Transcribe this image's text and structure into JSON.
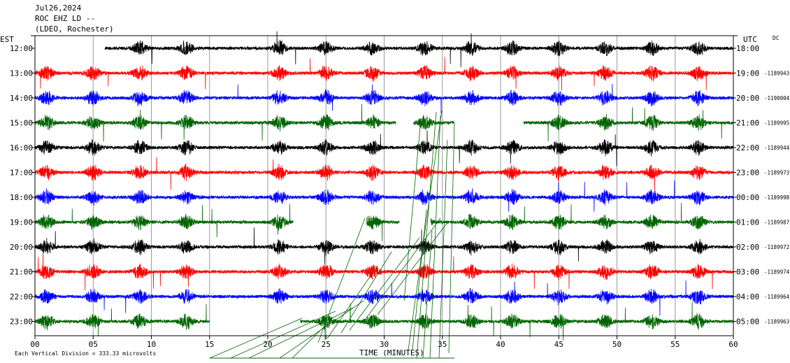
{
  "header": {
    "date": "Jul26,2024",
    "station": "ROC EHZ LD --",
    "network": "(LDEO, Rochester)"
  },
  "left_zone_label": "EST",
  "right_zone_label": "UTC",
  "dc_label": "DC",
  "footer_note": "Each Vertical Division = 333.33 microvolts",
  "chart_data": {
    "type": "line",
    "title": "",
    "xlabel": "TIME (MINUTES)",
    "ylabel": "",
    "xlim": [
      0,
      60
    ],
    "x_ticks": [
      "00",
      "05",
      "10",
      "15",
      "20",
      "25",
      "30",
      "35",
      "40",
      "45",
      "50",
      "55",
      "60"
    ],
    "grid": true,
    "rows": [
      {
        "est": "12:00",
        "utc": "18:00",
        "dc": "",
        "color": "#000000",
        "start_min": 6,
        "end_min": 60
      },
      {
        "est": "13:00",
        "utc": "19:00",
        "dc": "-1189943",
        "color": "#ff0000",
        "start_min": 0,
        "end_min": 60
      },
      {
        "est": "14:00",
        "utc": "20:00",
        "dc": "-1190004",
        "color": "#0000ff",
        "start_min": 0,
        "end_min": 60
      },
      {
        "est": "15:00",
        "utc": "21:00",
        "dc": "-1189995",
        "color": "#006400",
        "start_min": 0,
        "end_min": 60,
        "gaps": [
          [
            31,
            32.5
          ],
          [
            36,
            42
          ]
        ]
      },
      {
        "est": "16:00",
        "utc": "22:00",
        "dc": "-1189944",
        "color": "#000000",
        "start_min": 0,
        "end_min": 60
      },
      {
        "est": "17:00",
        "utc": "23:00",
        "dc": "-1189973",
        "color": "#ff0000",
        "start_min": 0,
        "end_min": 60
      },
      {
        "est": "18:00",
        "utc": "00:00",
        "dc": "-1189998",
        "color": "#0000ff",
        "start_min": 0,
        "end_min": 60
      },
      {
        "est": "19:00",
        "utc": "01:00",
        "dc": "-1189987",
        "color": "#006400",
        "start_min": 0,
        "end_min": 60,
        "gaps": [
          [
            22.2,
            28.5
          ],
          [
            31.3,
            34
          ]
        ]
      },
      {
        "est": "20:00",
        "utc": "02:00",
        "dc": "-1189972",
        "color": "#000000",
        "start_min": 0,
        "end_min": 60
      },
      {
        "est": "21:00",
        "utc": "03:00",
        "dc": "-1189974",
        "color": "#ff0000",
        "start_min": 0,
        "end_min": 60
      },
      {
        "est": "22:00",
        "utc": "04:00",
        "dc": "-1189964",
        "color": "#0000ff",
        "start_min": 0,
        "end_min": 60
      },
      {
        "est": "23:00",
        "utc": "05:00",
        "dc": "-1189963",
        "color": "#006400",
        "start_min": 0,
        "end_min": 60,
        "gaps": [
          [
            15,
            22.8
          ]
        ]
      }
    ],
    "event_bursts_min": [
      1,
      5,
      9,
      13,
      21,
      25,
      29,
      33.5,
      37.5,
      41,
      45,
      49,
      53,
      57
    ]
  }
}
